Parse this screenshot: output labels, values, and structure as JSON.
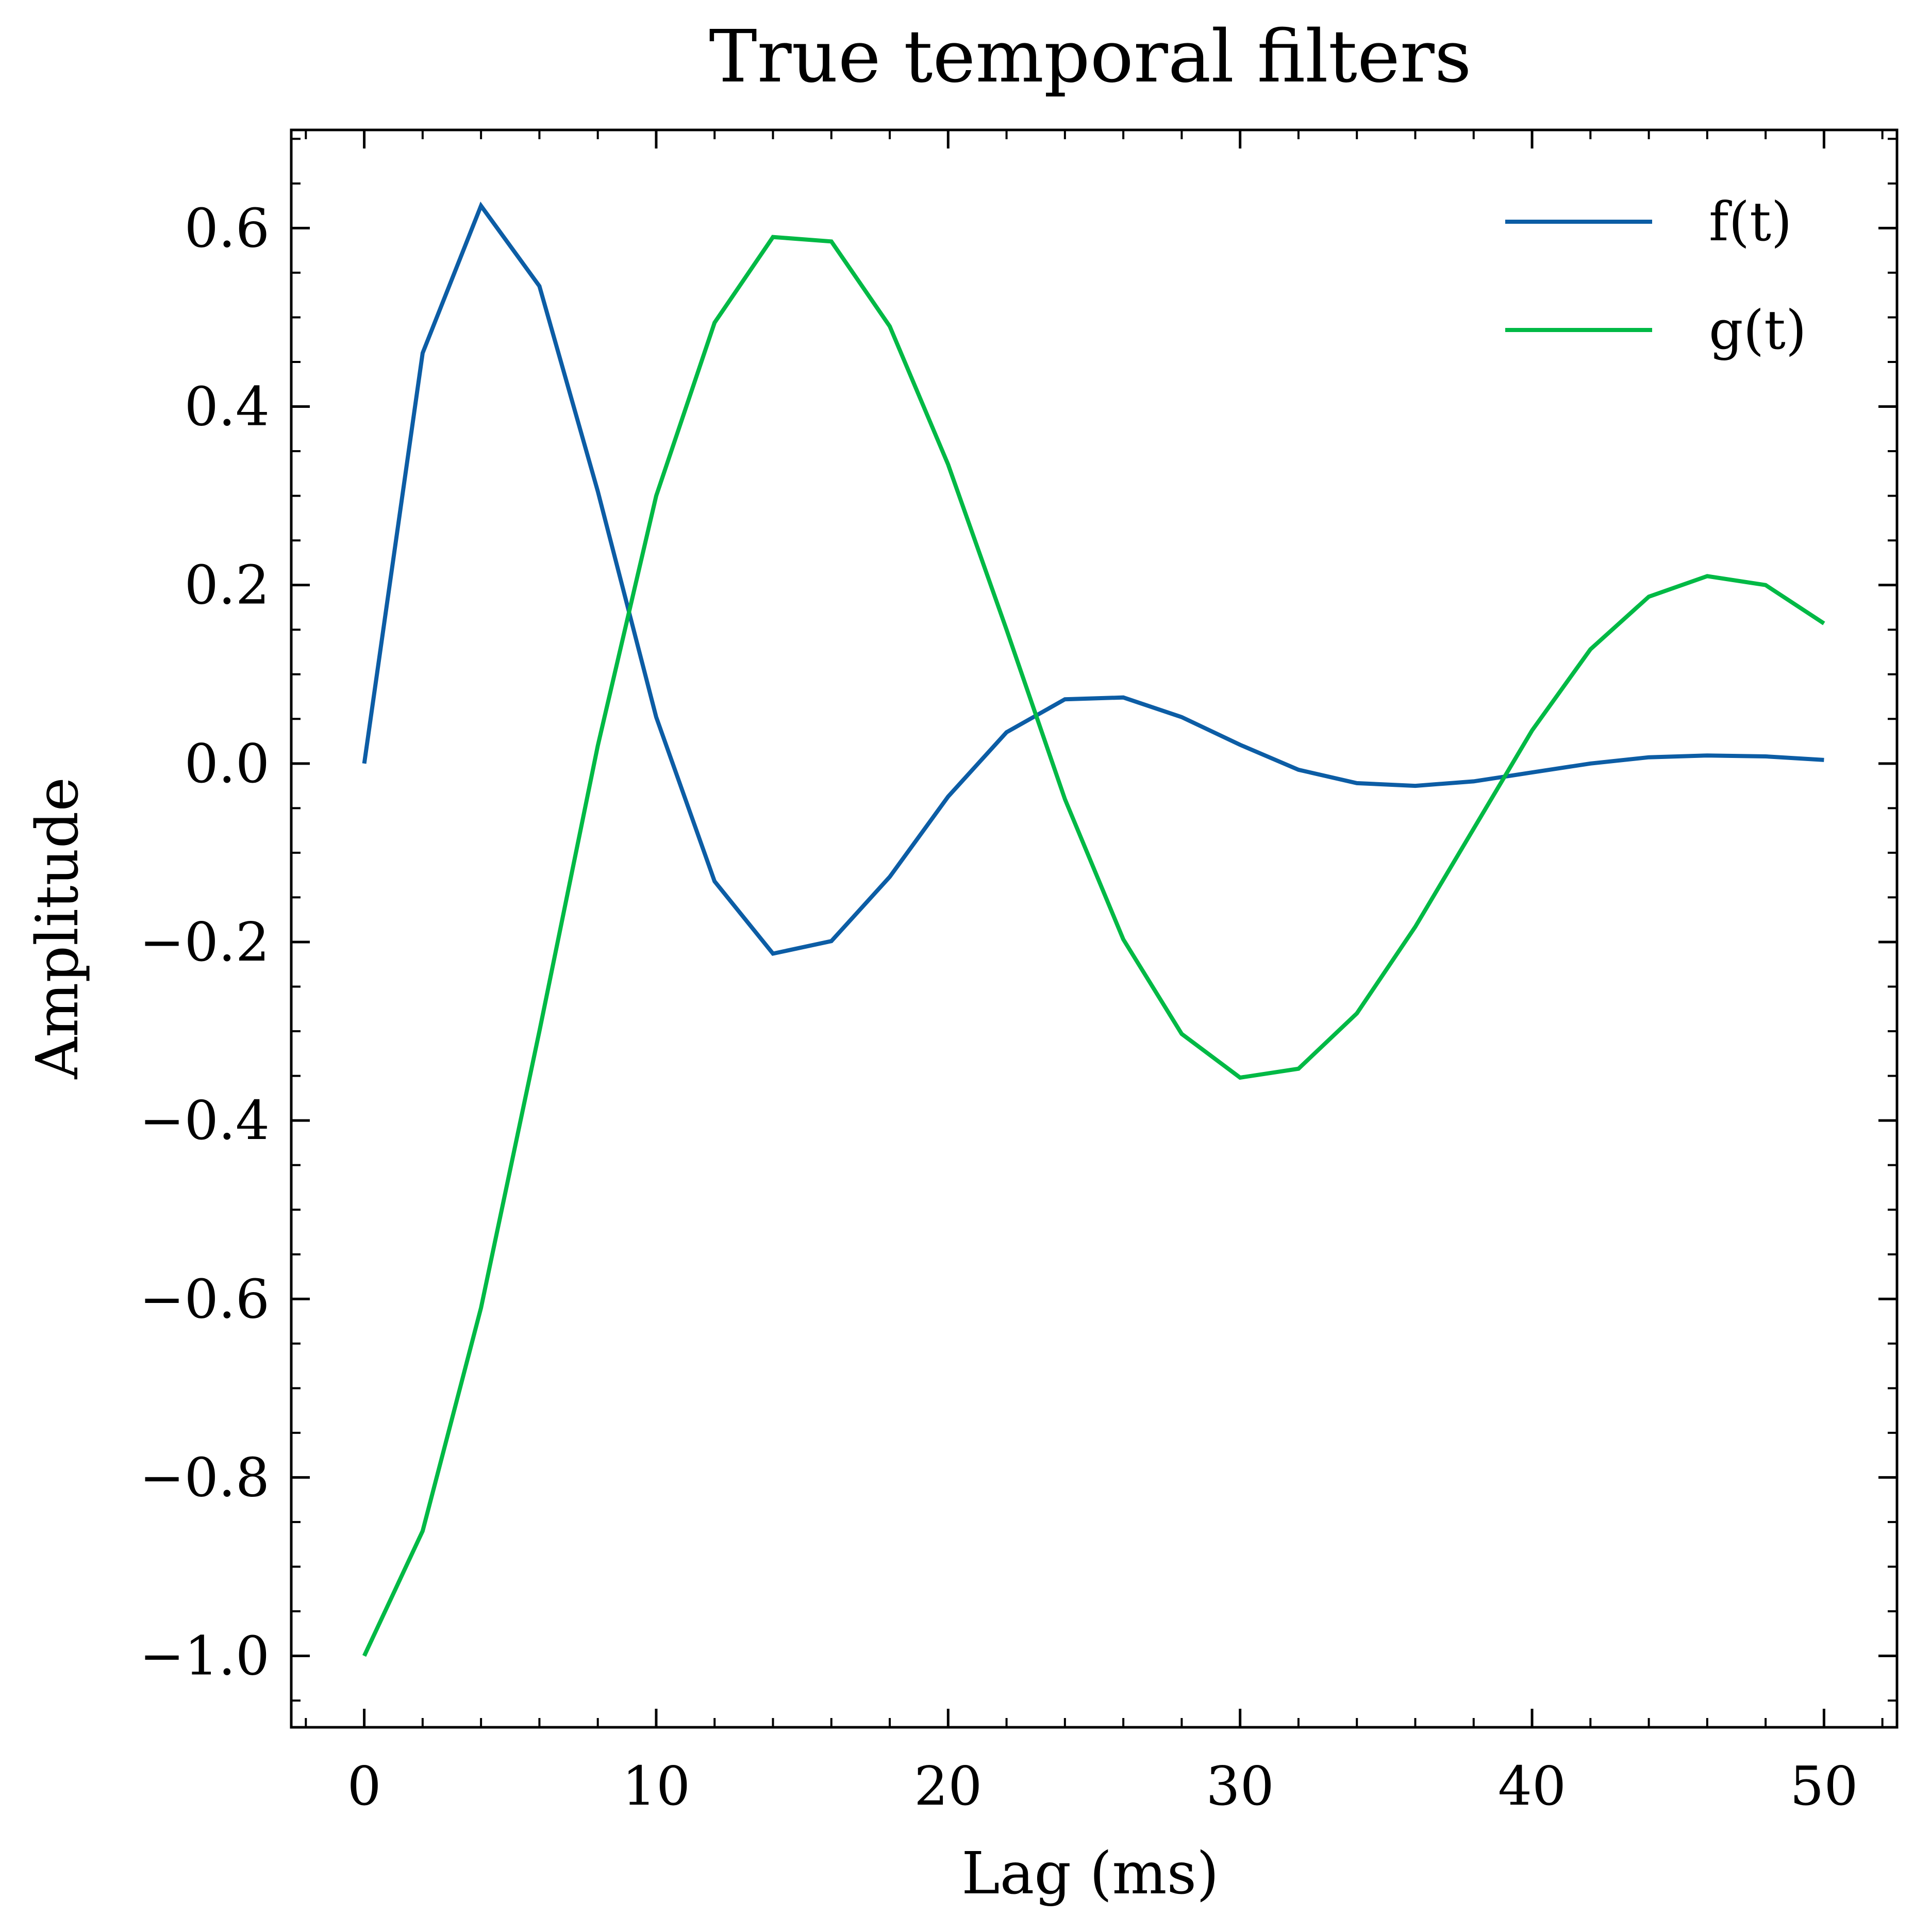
{
  "chart_data": {
    "type": "line",
    "title": "True temporal filters",
    "xlabel": "Lag (ms)",
    "ylabel": "Amplitude",
    "xlim": [
      -2.5,
      52.5
    ],
    "ylim": [
      -1.08,
      0.71
    ],
    "xticks": [
      0,
      10,
      20,
      30,
      40,
      50
    ],
    "xtick_labels": [
      "0",
      "10",
      "20",
      "30",
      "40",
      "50"
    ],
    "yticks": [
      0.6,
      0.4,
      0.2,
      0.0,
      -0.2,
      -0.4,
      -0.6,
      -0.8,
      -1.0
    ],
    "ytick_labels": [
      "0.6",
      "0.4",
      "0.2",
      "0.0",
      "−0.2",
      "−0.4",
      "−0.6",
      "−0.8",
      "−1.0"
    ],
    "grid": false,
    "legend_position": "top-right",
    "x": [
      0,
      2,
      4,
      6,
      8,
      10,
      12,
      14,
      16,
      18,
      20,
      22,
      24,
      26,
      28,
      30,
      32,
      34,
      36,
      38,
      40,
      42,
      44,
      46,
      48,
      50
    ],
    "series": [
      {
        "name": "f(t)",
        "color": "#0C5DA5",
        "values": [
          0.0,
          0.46,
          0.625,
          0.535,
          0.305,
          0.052,
          -0.132,
          -0.213,
          -0.199,
          -0.127,
          -0.037,
          0.035,
          0.072,
          0.074,
          0.052,
          0.021,
          -0.007,
          -0.022,
          -0.025,
          -0.02,
          -0.01,
          0.0,
          0.007,
          0.009,
          0.008,
          0.004
        ]
      },
      {
        "name": "g(t)",
        "color": "#00B945",
        "values": [
          -1.0,
          -0.86,
          -0.61,
          -0.3,
          0.02,
          0.3,
          0.494,
          0.59,
          0.585,
          0.49,
          0.335,
          0.15,
          -0.04,
          -0.197,
          -0.303,
          -0.352,
          -0.342,
          -0.28,
          -0.183,
          -0.073,
          0.037,
          0.128,
          0.187,
          0.21,
          0.2,
          0.157
        ]
      }
    ]
  }
}
